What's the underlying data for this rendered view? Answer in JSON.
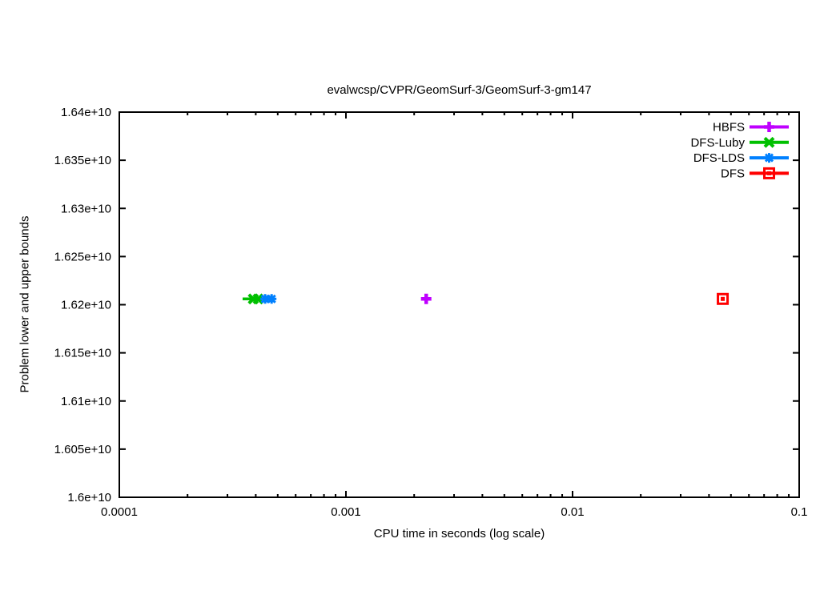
{
  "chart_data": {
    "type": "scatter",
    "title": "evalwcsp/CVPR/GeomSurf-3/GeomSurf-3-gm147",
    "xlabel": "CPU time in seconds (log scale)",
    "ylabel": "Problem lower and upper bounds",
    "x_scale": "log",
    "y_scale": "linear",
    "xlim": [
      0.0001,
      0.1
    ],
    "ylim": [
      16000000000,
      16400000000
    ],
    "x_tick_values": [
      0.0001,
      0.001,
      0.01,
      0.1
    ],
    "x_tick_labels": [
      "0.0001",
      "0.001",
      "0.01",
      "0.1"
    ],
    "y_tick_values": [
      16000000000,
      16050000000,
      16100000000,
      16150000000,
      16200000000,
      16250000000,
      16300000000,
      16350000000,
      16400000000
    ],
    "y_tick_labels": [
      "1.6e+10",
      "1.605e+10",
      "1.61e+10",
      "1.615e+10",
      "1.62e+10",
      "1.625e+10",
      "1.63e+10",
      "1.635e+10",
      "1.64e+10"
    ],
    "grid": false,
    "legend_position": "top-right-inside",
    "axis_color": "#000000",
    "series": [
      {
        "name": "HBFS",
        "color": "#bf00ff",
        "marker": "plus",
        "line_points": [
          [
            0.00226,
            16206000000
          ]
        ],
        "marker_points": [
          [
            0.00226,
            16206000000
          ]
        ]
      },
      {
        "name": "DFS-Luby",
        "color": "#00c000",
        "marker": "cross",
        "line_points": [
          [
            0.00035,
            16206000000
          ],
          [
            0.00041,
            16206000000
          ]
        ],
        "marker_points": [
          [
            0.00039,
            16206000000
          ],
          [
            0.00041,
            16206000000
          ]
        ]
      },
      {
        "name": "DFS-LDS",
        "color": "#0080ff",
        "marker": "asterisk",
        "line_points": [
          [
            0.00044,
            16206000000
          ],
          [
            0.00047,
            16206000000
          ]
        ],
        "marker_points": [
          [
            0.00044,
            16206000000
          ],
          [
            0.00047,
            16206000000
          ]
        ]
      },
      {
        "name": "DFS",
        "color": "#ff0000",
        "marker": "open-square-dot",
        "line_points": [
          [
            0.046,
            16206000000
          ]
        ],
        "marker_points": [
          [
            0.046,
            16206000000
          ]
        ]
      }
    ]
  }
}
